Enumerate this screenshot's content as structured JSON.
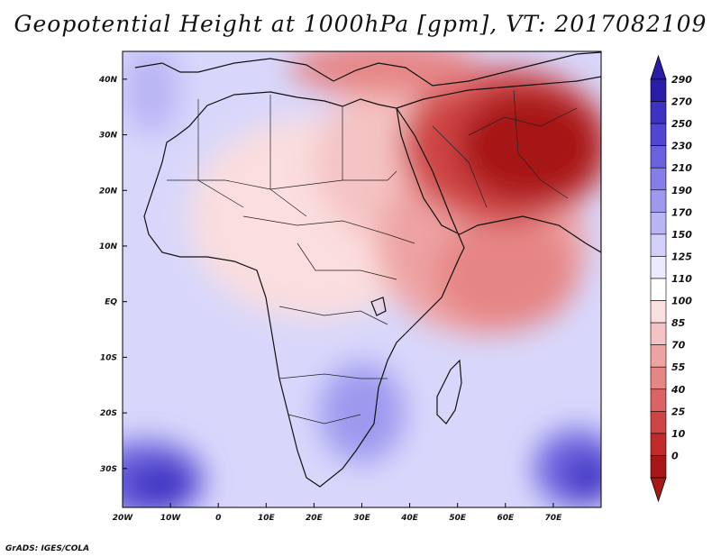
{
  "title": "Geopotential Height at 1000hPa [gpm], VT: 2017082109",
  "credit": "GrADS: IGES/COLA",
  "map": {
    "lon_range": [
      -20,
      80
    ],
    "lat_range": [
      -37,
      45
    ],
    "lon_ticks": [
      {
        "value": -20,
        "label": "20W"
      },
      {
        "value": -10,
        "label": "10W"
      },
      {
        "value": 0,
        "label": "0"
      },
      {
        "value": 10,
        "label": "10E"
      },
      {
        "value": 20,
        "label": "20E"
      },
      {
        "value": 30,
        "label": "30E"
      },
      {
        "value": 40,
        "label": "40E"
      },
      {
        "value": 50,
        "label": "50E"
      },
      {
        "value": 60,
        "label": "60E"
      },
      {
        "value": 70,
        "label": "70E"
      }
    ],
    "lat_ticks": [
      {
        "value": 40,
        "label": "40N"
      },
      {
        "value": 30,
        "label": "30N"
      },
      {
        "value": 20,
        "label": "20N"
      },
      {
        "value": 10,
        "label": "10N"
      },
      {
        "value": 0,
        "label": "EQ"
      },
      {
        "value": -10,
        "label": "10S"
      },
      {
        "value": -20,
        "label": "20S"
      },
      {
        "value": -30,
        "label": "30S"
      }
    ]
  },
  "colorbar": {
    "levels": [
      "290",
      "270",
      "250",
      "230",
      "210",
      "190",
      "170",
      "150",
      "125",
      "110",
      "100",
      "85",
      "70",
      "55",
      "40",
      "25",
      "10",
      "0"
    ],
    "colors": [
      "#2a1ea8",
      "#3d33c2",
      "#5046d2",
      "#6a61de",
      "#857ee8",
      "#9e99ef",
      "#b9b5f5",
      "#d2d0f9",
      "#eceaff",
      "#ffffff",
      "#fbdede",
      "#f5c3c3",
      "#eea3a3",
      "#e68585",
      "#db6363",
      "#cf4545",
      "#c12a2a",
      "#a71717"
    ]
  },
  "fields": {
    "base_color": "#d8d7fb",
    "blobs": [
      {
        "lon": -15,
        "lat": -32,
        "rx": 12,
        "ry": 7,
        "color": "#6a61de"
      },
      {
        "lon": -12,
        "lat": -33,
        "rx": 7,
        "ry": 4,
        "color": "#3d33c2"
      },
      {
        "lon": -14,
        "lat": 38,
        "rx": 6,
        "ry": 8,
        "color": "#b9b5f5"
      },
      {
        "lon": 75,
        "lat": -30,
        "rx": 9,
        "ry": 7,
        "color": "#6a61de"
      },
      {
        "lon": 78,
        "lat": -32,
        "rx": 5,
        "ry": 4,
        "color": "#3d33c2"
      },
      {
        "lon": 30,
        "lat": -20,
        "rx": 9,
        "ry": 9,
        "color": "#9e99ef"
      },
      {
        "lon": 20,
        "lat": 15,
        "rx": 26,
        "ry": 18,
        "color": "#fbdede"
      },
      {
        "lon": 40,
        "lat": 25,
        "rx": 20,
        "ry": 15,
        "color": "#f5c3c3"
      },
      {
        "lon": 55,
        "lat": 10,
        "rx": 22,
        "ry": 16,
        "color": "#eea3a3"
      },
      {
        "lon": 60,
        "lat": 5,
        "rx": 15,
        "ry": 10,
        "color": "#e68585"
      },
      {
        "lon": 60,
        "lat": 28,
        "rx": 22,
        "ry": 14,
        "color": "#cf4545"
      },
      {
        "lon": 65,
        "lat": 28,
        "rx": 15,
        "ry": 10,
        "color": "#a71717"
      },
      {
        "lon": 35,
        "lat": 42,
        "rx": 20,
        "ry": 5,
        "color": "#e68585"
      }
    ]
  }
}
